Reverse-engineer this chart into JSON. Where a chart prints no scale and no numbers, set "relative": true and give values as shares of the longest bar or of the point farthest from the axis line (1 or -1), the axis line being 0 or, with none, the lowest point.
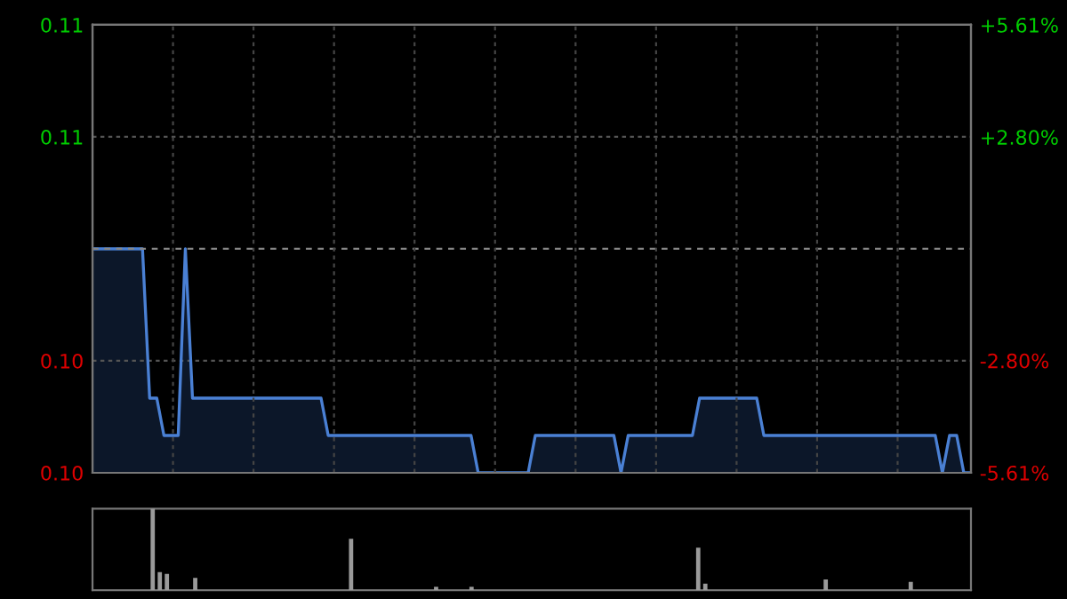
{
  "chart_data": [
    {
      "type": "area",
      "categories": [
        null,
        null,
        null,
        null,
        null,
        null,
        null,
        null,
        null,
        null,
        null,
        null,
        null,
        null,
        null,
        null,
        null,
        null,
        null,
        null,
        null,
        null,
        null,
        null,
        null,
        null,
        null,
        null,
        null,
        null,
        null,
        null,
        null,
        null,
        null,
        null,
        null,
        null,
        null,
        null,
        null,
        null,
        null,
        null,
        null,
        null,
        null,
        null,
        null,
        null,
        null,
        null,
        null,
        null,
        null,
        null,
        null,
        null,
        null,
        null,
        null,
        null,
        null,
        null,
        null,
        null,
        null,
        null,
        null,
        null,
        null,
        null,
        null,
        null,
        null,
        null,
        null,
        null,
        null,
        null,
        null,
        null,
        null,
        null,
        null,
        null,
        null,
        null,
        null,
        null,
        null,
        null,
        null,
        null,
        null,
        null,
        null,
        null,
        null,
        null,
        null,
        null,
        null,
        null,
        null,
        null,
        null,
        null,
        null,
        null,
        null,
        null,
        null,
        null,
        null,
        null,
        null,
        null,
        null,
        null,
        null,
        null,
        null,
        null
      ],
      "series": [
        {
          "color": "#4a80d4",
          "values": [
            0.107,
            0.107,
            0.107,
            0.107,
            0.107,
            0.107,
            0.107,
            0.107,
            0.103,
            0.103,
            0.102,
            0.102,
            0.102,
            0.107,
            0.103,
            0.103,
            0.103,
            0.103,
            0.103,
            0.103,
            0.103,
            0.103,
            0.103,
            0.103,
            0.103,
            0.103,
            0.103,
            0.103,
            0.103,
            0.103,
            0.103,
            0.103,
            0.103,
            0.102,
            0.102,
            0.102,
            0.102,
            0.102,
            0.102,
            0.102,
            0.102,
            0.102,
            0.102,
            0.102,
            0.102,
            0.102,
            0.102,
            0.102,
            0.102,
            0.102,
            0.102,
            0.102,
            0.102,
            0.102,
            0.101,
            0.101,
            0.101,
            0.101,
            0.101,
            0.101,
            0.101,
            0.101,
            0.102,
            0.102,
            0.102,
            0.102,
            0.102,
            0.102,
            0.102,
            0.102,
            0.102,
            0.102,
            0.102,
            0.102,
            0.101,
            0.102,
            0.102,
            0.102,
            0.102,
            0.102,
            0.102,
            0.102,
            0.102,
            0.102,
            0.102,
            0.103,
            0.103,
            0.103,
            0.103,
            0.103,
            0.103,
            0.103,
            0.103,
            0.103,
            0.102,
            0.102,
            0.102,
            0.102,
            0.102,
            0.102,
            0.102,
            0.102,
            0.102,
            0.102,
            0.102,
            0.102,
            0.102,
            0.102,
            0.102,
            0.102,
            0.102,
            0.102,
            0.102,
            0.102,
            0.102,
            0.102,
            0.102,
            0.102,
            0.102,
            0.101,
            0.102,
            0.102,
            0.101,
            0.101
          ]
        }
      ],
      "ylim": [
        0.101,
        0.113
      ],
      "yticks": [
        {
          "value": 0.101,
          "label": "0.10"
        },
        {
          "value": 0.104,
          "label": "0.10"
        },
        {
          "value": 0.11,
          "label": "0.11"
        },
        {
          "value": 0.113,
          "label": "0.11"
        }
      ],
      "y2lim": [
        -5.61,
        5.61
      ],
      "y2ticks": [
        {
          "value": -5.61,
          "label": "-5.61%"
        },
        {
          "value": -2.8,
          "label": "-2.80%"
        },
        {
          "value": 2.8,
          "label": "+2.80%"
        },
        {
          "value": 5.61,
          "label": "+5.61%"
        }
      ],
      "ref_lines": [
        {
          "axis": "y",
          "value": 0.107,
          "color": "#888888",
          "line_style": "dashed"
        }
      ],
      "grid": true,
      "tick_labels": "y"
    },
    {
      "type": "bar",
      "relative": true,
      "color": "#9a9a9a",
      "categories": [
        null,
        null,
        null,
        null,
        null,
        null,
        null,
        null,
        null,
        null,
        null,
        null,
        null,
        null,
        null,
        null,
        null,
        null,
        null,
        null,
        null,
        null,
        null,
        null,
        null,
        null,
        null,
        null,
        null,
        null,
        null,
        null,
        null,
        null,
        null,
        null,
        null,
        null,
        null,
        null,
        null,
        null,
        null,
        null,
        null,
        null,
        null,
        null,
        null,
        null,
        null,
        null,
        null,
        null,
        null,
        null,
        null,
        null,
        null,
        null,
        null,
        null,
        null,
        null,
        null,
        null,
        null,
        null,
        null,
        null,
        null,
        null,
        null,
        null,
        null,
        null,
        null,
        null,
        null,
        null,
        null,
        null,
        null,
        null,
        null,
        null,
        null,
        null,
        null,
        null,
        null,
        null,
        null,
        null,
        null,
        null,
        null,
        null,
        null,
        null,
        null,
        null,
        null,
        null,
        null,
        null,
        null,
        null,
        null,
        null,
        null,
        null,
        null,
        null,
        null,
        null,
        null,
        null,
        null,
        null,
        null,
        null,
        null,
        null
      ],
      "values": [
        0,
        0,
        0,
        0,
        0,
        0,
        0,
        0,
        1.0,
        0.22,
        0.2,
        0,
        0,
        0,
        0.15,
        0,
        0,
        0,
        0,
        0,
        0,
        0,
        0,
        0,
        0,
        0,
        0,
        0,
        0,
        0,
        0,
        0,
        0,
        0,
        0,
        0,
        0.63,
        0,
        0,
        0,
        0,
        0,
        0,
        0,
        0,
        0,
        0,
        0,
        0.04,
        0,
        0,
        0,
        0,
        0.04,
        0,
        0,
        0,
        0,
        0,
        0,
        0,
        0,
        0,
        0,
        0,
        0,
        0,
        0,
        0,
        0,
        0,
        0,
        0,
        0,
        0,
        0,
        0,
        0,
        0,
        0,
        0,
        0,
        0,
        0,
        0,
        0.52,
        0.08,
        0,
        0,
        0,
        0,
        0,
        0,
        0,
        0,
        0,
        0,
        0,
        0,
        0,
        0,
        0,
        0,
        0.13,
        0,
        0,
        0,
        0,
        0,
        0,
        0,
        0,
        0,
        0,
        0,
        0.1,
        0,
        0,
        0,
        0,
        0,
        0,
        0,
        0
      ]
    }
  ]
}
